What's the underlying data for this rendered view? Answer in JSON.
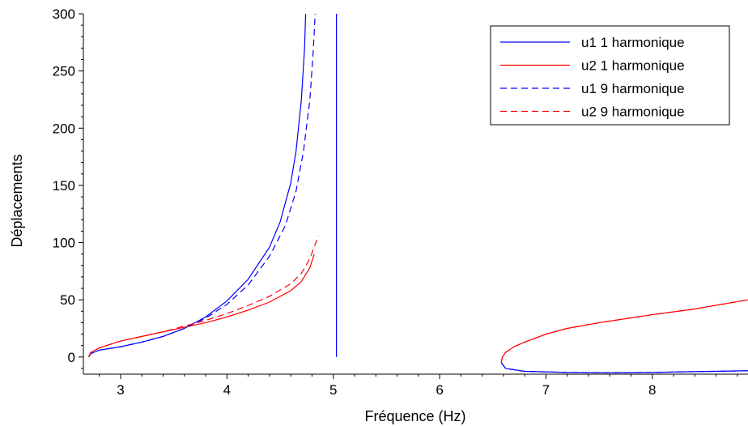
{
  "chart_data": {
    "type": "line",
    "title": "",
    "xlabel": "Fréquence (Hz)",
    "ylabel": "Déplacements",
    "xlim": [
      2.65,
      8.9
    ],
    "ylim": [
      -15,
      300
    ],
    "xticks": [
      3,
      4,
      5,
      6,
      7,
      8
    ],
    "yticks": [
      0,
      50,
      100,
      150,
      200,
      250,
      300
    ],
    "grid": false,
    "legend": {
      "position": "top-right"
    },
    "series": [
      {
        "name": "u1 1 harmonique",
        "color": "#0000ff",
        "dash": "solid",
        "segments": [
          [
            [
              2.7,
              0
            ],
            [
              2.72,
              3
            ],
            [
              2.8,
              6
            ],
            [
              3.0,
              9
            ],
            [
              3.2,
              13
            ],
            [
              3.4,
              18
            ],
            [
              3.6,
              25
            ],
            [
              3.8,
              35
            ],
            [
              4.0,
              49
            ],
            [
              4.2,
              68
            ],
            [
              4.4,
              96
            ],
            [
              4.5,
              118
            ],
            [
              4.6,
              152
            ],
            [
              4.65,
              180
            ],
            [
              4.7,
              225
            ],
            [
              4.73,
              270
            ],
            [
              4.74,
              300
            ]
          ],
          [
            [
              5.03,
              300
            ],
            [
              5.03,
              0
            ]
          ],
          [
            [
              6.58,
              -5
            ],
            [
              6.62,
              -10
            ],
            [
              6.8,
              -12.5
            ],
            [
              7.2,
              -13.5
            ],
            [
              7.6,
              -13.8
            ],
            [
              8.0,
              -13.5
            ],
            [
              8.4,
              -12.8
            ],
            [
              8.9,
              -12
            ]
          ]
        ]
      },
      {
        "name": "u2 1 harmonique",
        "color": "#ff0000",
        "dash": "solid",
        "segments": [
          [
            [
              2.7,
              0
            ],
            [
              2.72,
              4
            ],
            [
              2.8,
              8
            ],
            [
              3.0,
              14
            ],
            [
              3.2,
              18
            ],
            [
              3.4,
              22
            ],
            [
              3.6,
              26
            ],
            [
              3.8,
              30
            ],
            [
              4.0,
              35
            ],
            [
              4.2,
              41
            ],
            [
              4.4,
              48
            ],
            [
              4.6,
              58
            ],
            [
              4.7,
              66
            ],
            [
              4.78,
              78
            ],
            [
              4.82,
              90
            ]
          ],
          [
            [
              6.58,
              -5
            ],
            [
              6.59,
              0
            ],
            [
              6.62,
              4
            ],
            [
              6.7,
              9
            ],
            [
              6.8,
              13
            ],
            [
              7.0,
              20
            ],
            [
              7.2,
              25
            ],
            [
              7.5,
              30
            ],
            [
              8.0,
              37
            ],
            [
              8.4,
              42
            ],
            [
              8.9,
              50
            ]
          ]
        ]
      },
      {
        "name": "u1 9 harmonique",
        "color": "#0000ff",
        "dash": "dashed",
        "segments": [
          [
            [
              2.7,
              0
            ],
            [
              2.72,
              3
            ],
            [
              2.8,
              6
            ],
            [
              3.0,
              9
            ],
            [
              3.2,
              13
            ],
            [
              3.4,
              18
            ],
            [
              3.6,
              25
            ],
            [
              3.8,
              34
            ],
            [
              4.0,
              46
            ],
            [
              4.2,
              63
            ],
            [
              4.4,
              88
            ],
            [
              4.55,
              115
            ],
            [
              4.65,
              145
            ],
            [
              4.72,
              180
            ],
            [
              4.78,
              225
            ],
            [
              4.81,
              265
            ],
            [
              4.83,
              300
            ]
          ],
          [
            [
              6.58,
              -5
            ],
            [
              6.62,
              -10
            ],
            [
              6.8,
              -12.5
            ],
            [
              7.2,
              -13.5
            ],
            [
              7.6,
              -13.8
            ],
            [
              8.0,
              -13.5
            ],
            [
              8.4,
              -12.8
            ],
            [
              8.9,
              -12
            ]
          ]
        ]
      },
      {
        "name": "u2 9 harmonique",
        "color": "#ff0000",
        "dash": "dashed",
        "segments": [
          [
            [
              2.7,
              0
            ],
            [
              2.72,
              4
            ],
            [
              2.8,
              8
            ],
            [
              3.0,
              14
            ],
            [
              3.2,
              18
            ],
            [
              3.4,
              22
            ],
            [
              3.6,
              27
            ],
            [
              3.8,
              32
            ],
            [
              4.0,
              38
            ],
            [
              4.2,
              45
            ],
            [
              4.4,
              53
            ],
            [
              4.6,
              64
            ],
            [
              4.7,
              73
            ],
            [
              4.78,
              86
            ],
            [
              4.82,
              96
            ],
            [
              4.86,
              106
            ]
          ],
          [
            [
              6.58,
              -5
            ],
            [
              6.59,
              0
            ],
            [
              6.62,
              4
            ],
            [
              6.7,
              9
            ],
            [
              6.8,
              13
            ],
            [
              7.0,
              20
            ],
            [
              7.2,
              25
            ],
            [
              7.5,
              30
            ],
            [
              8.0,
              37
            ],
            [
              8.4,
              42
            ],
            [
              8.9,
              50
            ]
          ]
        ]
      }
    ]
  }
}
